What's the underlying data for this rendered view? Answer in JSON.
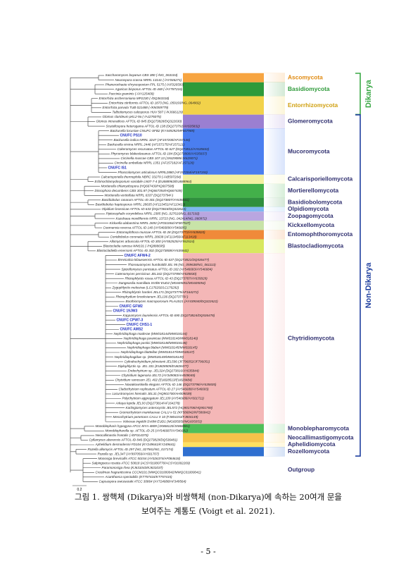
{
  "figure": {
    "leaves": [
      "Saccharomyces bayanus CBS 380 (-/NG_063104)",
      "Neurospora crassa NRRL 13141 (-/AY046271)",
      "Phanerochaete chrysosporium FPL 5175 (-/AF026593)",
      "Agaricus bisporus AFTOL-ID 448 (-/AY787216)",
      "Puccinia graminis (-/AY125409)",
      "Entorrhiza aschersoniana MP2230 (-/DQ363318)",
      "Entorrhiza citriformis AFTOL-ID 1873 (NG_059193/NG_064902)",
      "Entorrhiza parvula TUB 021488 (-/KM359779)",
      "Talbotiomyces calosporus HUV 587 (-/KJ666129)",
      "Glomus clarideum pKL2-9a (-/AJ276075)",
      "Glomus intraradices AFTOL-ID 845 (DQ273828/DQ322630)",
      "Scutellospora heterogama AFTOL-ID 138 (DQ273792/AY635832)",
      "Backusella locustae CNUFC-SFB2 (KY449292/MF667989)",
      "CNUFC PS10",
      "Backusella indica NRRL 3247 (AF157200/AF157146)",
      "Backusella circina NRRL 2446 (AF157175/AF157121)",
      "Cokeromyces recurvatus AFTOL-ID 627 (DQ273812/AY635843)",
      "Phycomyces blakesleeanus AFTOL-ID 184 (DQ273800/AY635837)",
      "Circinella muscae CBS 107.13 (JX629085/JX629071)",
      "Circinella umbellata NRRL 1351 (AF157182/AF157128)",
      "CNUFC IS1",
      "Phascolomyces articulosus NRRL2880 (AF157204/AF157150)",
      "Calcarisporiella thermophila NBRC 33279 (-/AB597204)",
      "Echinochlamydosporium variabile LN07-7-4 (EU688963/EU688964)",
      "Mortierella chlamydospora (HQ667430/HQ667508)",
      "Dissophora decumbens CBS 301.87 (HQ667354/HQ667439)",
      "Mortierella verticillata NRRL 6337 (DQ273794/-)",
      "Basidiobolus ranarum AFTOL-ID 301 (DQ273807/AY635841)",
      "Basidiobolus haptosporus NRRL 28635 (AF113451/AF113413)",
      "Olpidium brassicae AFTOL-ID 633 (DQ273818/DQ322624)",
      "Piptocephalis corymbifera NRRL 2385 (NG_027616/NG_017192)",
      "Kuzuhaea moniliformis NRRL 13723 (NG_042414/NG_060972)",
      "Kickxella alabastrina NRRL 2693 (AF031064/AF007537)",
      "Coemansia reversa AFTOL-ID 140 (AY546689/AY546685)",
      "Entomophthora muscae AFTOL-ID 28 (DQ273772/AY635820)",
      "Conidiobolus coronatus NRRL 28638 (AF113456/AF113418)",
      "Allomyces arbuscula AFTOL-ID 300 (AY552525/AY552524)",
      "Blastocladia ramosa WM101 (-/HQ888695)",
      "Blastocladiella emersonii AFTOL-ID 302 (DQ273808/AY635842)",
      "CNUFC AFW4-2",
      "Brevicalcia kilaueaensis AFTOL-ID 637 (DQ273821/DQ536477)",
      "Thoreauomyces humboldtii JEL 95 (NG_059638/NG_061113)",
      "Spizellomyces punctatus AFTOL-ID 182 (AY546683/AY546684)",
      "Catenomyces persicinus JEL342 (DQ273789/AY635830)",
      "Rhizophlyctis rosea AFTOL-ID 43 (DQ273787/AY635829)",
      "Dangeardia mamillata SVdW EUD2 (MG605051/MG605054)",
      "Zygophlyctis melosirae (LC176292/LC176292)",
      "Rhizophlyctis harderi JEL171 (DQ273775/AF164272)",
      "Rhizophydium brooksianum JEL136 (DQ273770/-)",
      "Boothiomyces macroporosum PLAUS21 (AY439040/DQ322622)",
      "CNUFC GFW2",
      "CNUFC 19JW3",
      "Kappamyces laurelensis AFTOL-ID 690 (DQ273824/DQ536478)",
      "CNUFC CPW7-3",
      "CNUFC CHS1-1",
      "CNUFC AMS2",
      "Nephridiophaga maderae (MW018144/MW018144)",
      "Nephridiophaga javanicae (MW018146/MW018146)",
      "Nephridiophaga postici (MW018148/MW018148)",
      "Nephridiophaga blaberi (MW018145/MW018145)",
      "Nephridiophaga blattellae (MW018147/MW018147)",
      "Nephridiophagidae sp. (MW018149/MW018149)",
      "Cylindrochytridium johnstonii JEL596 (JF796052/JF796051)",
      "Diplophlyctis sp. JEL 331 (EU828505/EU828477)",
      "Endochytrium sp. JEL324 (DQ273816/AY635844)",
      "Chytridium lagenaria JEL72 (AY349083/AH009049)",
      "Chytridium ramosum JEL 402 (EU828513/EU828484)",
      "Nowakowskiella elegans AFTOL-ID 146 (DQ273798/AY635835)",
      "Cladochytrium replicatum AFTOL-ID 27 (AY546688/AY546683)",
      "Lacustromyces hiemalis JEL31 (HQ901700/AH009039)",
      "Polychytrium aggregatum JEL109 (AY546686/AY601711)",
      "Arkaya lepida JEL93 (DQ273814/AF164278)",
      "Karlingiomyces asterocystis JEL572 (HQ901706/HQ901769)",
      "Gromochytrium mamkaevae CALU x-51 (KF586842/KF586842)",
      "Mesochytrium penetrans CALU X 10 (FJ804153/FJ804149)",
      "Volvorax ingoldii SVdW-EUD1 (MG605050/MG605053)",
      "Monoblepharis hypogyna ATCC MYA-4809 (JX868120/JX868081)",
      "Monoblepharella sp. AFTOL-ID 25 (AY546687/AY546682)",
      "Neocallimastix frontalis (-/EF014370)",
      "Cyllamyces aberensis AFTOL-ID 846 (DQ273829/DQ536481)",
      "Aphelidium desmodesmi FD104 (KY249641/KY249641)",
      "Rozella allomycis AFTOL-ID 297 (NG_027561/NG_017174)",
      "Rozella sp. JEL347 (AY997056/AY601707)",
      "Monosiga brevicollis ATCC 50154 (AY026374/AF084618)",
      "Salpingoeca rosetta ATCC 50818 (ACSY01000770/ACSY01002269)",
      "Paramonosiga rhea (KJ631043/KJ631037)",
      "Creolimax fragrantissima CCCM101 (MWQC01000042/MWQC01000041)",
      "Acanthoeca spectabilis (KT757416/KT757415)",
      "Capsaspora owczarzaki ATCC 30864 (AY724688/AF349564)"
    ],
    "clades": [
      {
        "label": "Ascomycota",
        "first": 0,
        "last": 1
      },
      {
        "label": "Basidiomycota",
        "first": 2,
        "last": 4
      },
      {
        "label": "Entorrhizomycota",
        "first": 5,
        "last": 8
      },
      {
        "label": "Glomeromycota",
        "first": 9,
        "last": 11
      },
      {
        "label": "Mucoromycota",
        "first": 12,
        "last": 21
      },
      {
        "label": "Calcarisporiellomycota",
        "first": 22,
        "last": 23
      },
      {
        "label": "Mortierellomycota",
        "first": 24,
        "last": 26
      },
      {
        "label": "Basidiobolomycota",
        "first": 27,
        "last": 28
      },
      {
        "label": "Olpidiomycota",
        "first": 29,
        "last": 29
      },
      {
        "label": "Zoopagomycota",
        "first": 30,
        "last": 31
      },
      {
        "label": "Kickxellomycota",
        "first": 32,
        "last": 33
      },
      {
        "label": "Entomophthoromycota",
        "first": 34,
        "last": 35
      },
      {
        "label": "Blastocladiomycota",
        "first": 36,
        "last": 38
      },
      {
        "label": "Chytridiomycota",
        "first": 39,
        "last": 75
      },
      {
        "label": "Monoblepharomycota",
        "first": 76,
        "last": 77
      },
      {
        "label": "Neocallimastigomycota",
        "first": 78,
        "last": 79
      },
      {
        "label": "Aphelidiomycota",
        "first": 80,
        "last": 80
      },
      {
        "label": "Rozellomycota",
        "first": 81,
        "last": 82
      },
      {
        "label": "Outgroup",
        "first": 83,
        "last": 88
      }
    ],
    "groups": {
      "dikarya": "Dikarya",
      "non_dikarya": "Non-Dikarya"
    },
    "scale": "0.2",
    "caption": [
      "그림 1. 쌍핵체 (Dikarya)와 비쌍핵체 (non-Dikarya)에 속하는 20여개 문을",
      "보여주는 계통도 (Voigt et al. 2021)."
    ]
  },
  "page_number": "- 5 -"
}
